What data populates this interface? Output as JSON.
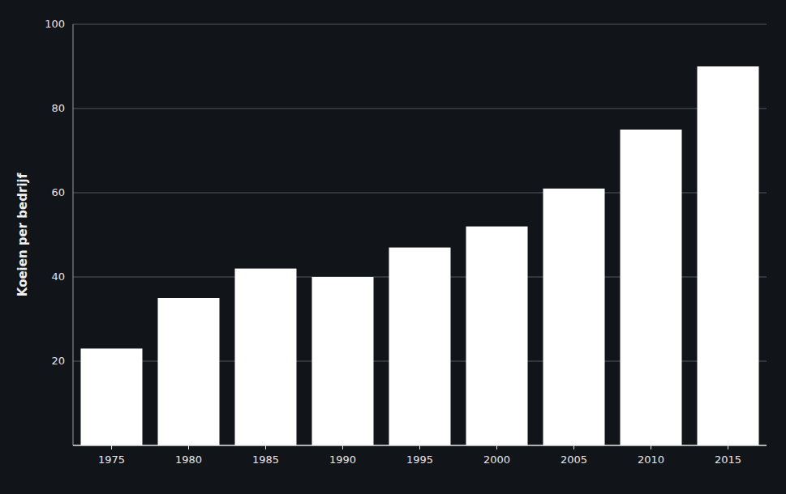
{
  "chart_data": {
    "type": "bar",
    "ylabel": "Koeien per bedrijf",
    "categories": [
      "1975",
      "1980",
      "1985",
      "1990",
      "1995",
      "2000",
      "2005",
      "2010",
      "2015"
    ],
    "values": [
      23,
      35,
      42,
      40,
      47,
      52,
      61,
      75,
      90
    ],
    "color": "#ffffff",
    "ylim": [
      0,
      100
    ],
    "yticks": [
      20,
      40,
      60,
      80,
      100
    ],
    "grid": true
  }
}
